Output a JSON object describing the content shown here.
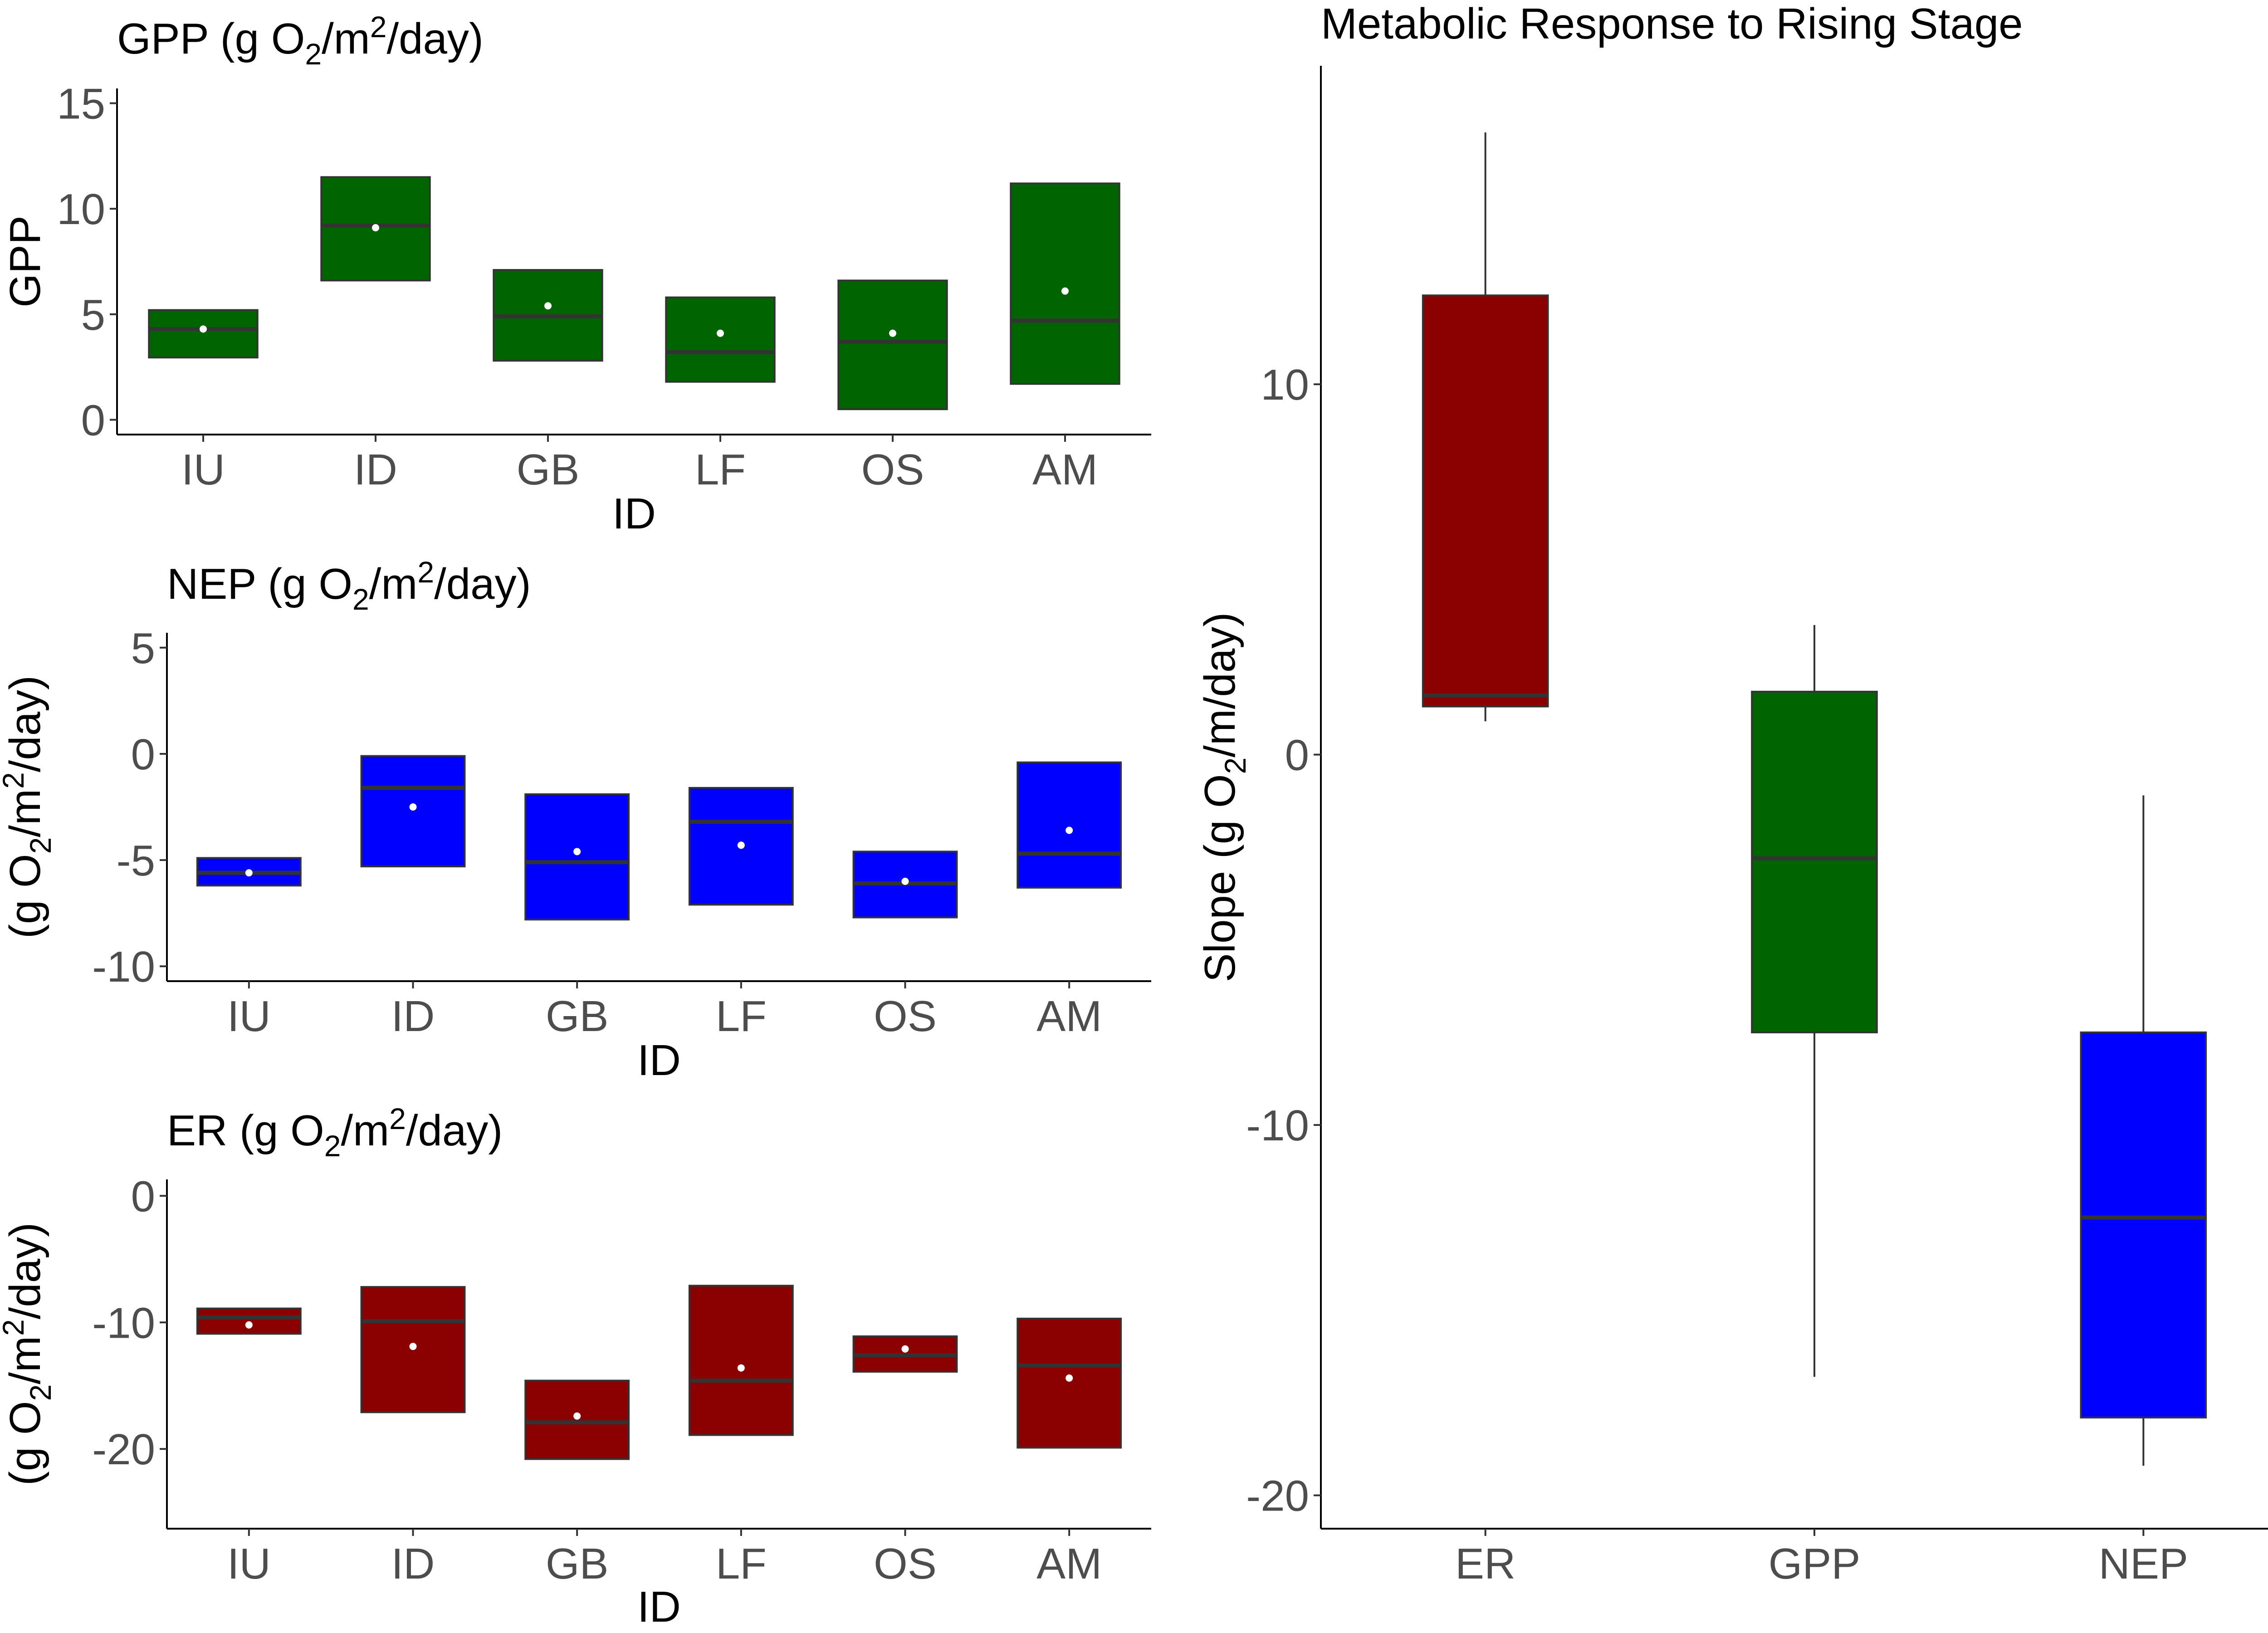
{
  "chart_data": [
    {
      "type": "box",
      "title": {
        "prefix": "GPP (g O",
        "sub": "2",
        "mid": "/m",
        "sup": "2",
        "suffix": "/day)"
      },
      "xlabel": "ID",
      "ylabel": {
        "prefix": "GPP"
      },
      "ylim": [
        -0.7,
        15.7
      ],
      "y_ticks": [
        0,
        5,
        10,
        15
      ],
      "y_tick_labels": [
        "0",
        "5",
        "10",
        "15"
      ],
      "fill_color": "#006400",
      "categories": [
        "IU",
        "ID",
        "GB",
        "LF",
        "OS",
        "AM"
      ],
      "boxes": [
        {
          "q1": 2.95,
          "median": 4.3,
          "q3": 5.2,
          "mean": 4.3
        },
        {
          "q1": 6.6,
          "median": 9.2,
          "q3": 11.5,
          "mean": 9.1
        },
        {
          "q1": 2.8,
          "median": 4.9,
          "q3": 7.1,
          "mean": 5.4
        },
        {
          "q1": 1.8,
          "median": 3.2,
          "q3": 5.8,
          "mean": 4.1
        },
        {
          "q1": 0.5,
          "median": 3.7,
          "q3": 6.6,
          "mean": 4.1
        },
        {
          "q1": 1.7,
          "median": 4.7,
          "q3": 11.2,
          "mean": 6.1
        }
      ]
    },
    {
      "type": "box",
      "title": {
        "prefix": "NEP (g O",
        "sub": "2",
        "mid": "/m",
        "sup": "2",
        "suffix": "/day)"
      },
      "xlabel": "ID",
      "ylabel": {
        "prefix": "(g O",
        "sub": "2",
        "mid": "/m",
        "sup": "2",
        "suffix": "/day)"
      },
      "ylim": [
        -10.7,
        5.7
      ],
      "y_ticks": [
        -10,
        -5,
        0,
        5
      ],
      "y_tick_labels": [
        "-10",
        "-5",
        "0",
        "5"
      ],
      "fill_color": "#0000FF",
      "categories": [
        "IU",
        "ID",
        "GB",
        "LF",
        "OS",
        "AM"
      ],
      "boxes": [
        {
          "q1": -6.2,
          "median": -5.6,
          "q3": -4.9,
          "mean": -5.6
        },
        {
          "q1": -5.3,
          "median": -1.6,
          "q3": -0.1,
          "mean": -2.5
        },
        {
          "q1": -7.8,
          "median": -5.1,
          "q3": -1.9,
          "mean": -4.6
        },
        {
          "q1": -7.1,
          "median": -3.2,
          "q3": -1.6,
          "mean": -4.3
        },
        {
          "q1": -7.7,
          "median": -6.1,
          "q3": -4.6,
          "mean": -6.0
        },
        {
          "q1": -6.3,
          "median": -4.7,
          "q3": -0.4,
          "mean": -3.6
        }
      ]
    },
    {
      "type": "box",
      "title": {
        "prefix": "ER (g O",
        "sub": "2",
        "mid": "/m",
        "sup": "2",
        "suffix": "/day)"
      },
      "xlabel": "ID",
      "ylabel": {
        "prefix": "(g O",
        "sub": "2",
        "mid": "/m",
        "sup": "2",
        "suffix": "/day)"
      },
      "ylim": [
        -26.3,
        1.3
      ],
      "y_ticks": [
        -20,
        -10,
        0
      ],
      "y_tick_labels": [
        "-20",
        "-10",
        "0"
      ],
      "fill_color": "#8B0000",
      "categories": [
        "IU",
        "ID",
        "GB",
        "LF",
        "OS",
        "AM"
      ],
      "boxes": [
        {
          "q1": -10.9,
          "median": -9.6,
          "q3": -8.9,
          "mean": -10.2
        },
        {
          "q1": -17.1,
          "median": -9.9,
          "q3": -7.2,
          "mean": -11.9
        },
        {
          "q1": -20.8,
          "median": -17.9,
          "q3": -14.6,
          "mean": -17.4
        },
        {
          "q1": -18.9,
          "median": -14.6,
          "q3": -7.1,
          "mean": -13.6
        },
        {
          "q1": -13.9,
          "median": -12.6,
          "q3": -11.1,
          "mean": -12.1
        },
        {
          "q1": -19.9,
          "median": -13.4,
          "q3": -9.7,
          "mean": -14.4
        }
      ]
    },
    {
      "type": "box",
      "title": {
        "prefix": "Metabolic Response to Rising Stage"
      },
      "xlabel": "",
      "ylabel": {
        "prefix": "Slope (g O",
        "sub": "2",
        "mid": "/m/day)"
      },
      "ylim": [
        -20.9,
        18.6
      ],
      "y_ticks": [
        -20,
        -10,
        0,
        10
      ],
      "y_tick_labels": [
        "-20",
        "-10",
        "0",
        "10"
      ],
      "categories": [
        "ER",
        "GPP",
        "NEP"
      ],
      "boxes": [
        {
          "min": 0.9,
          "q1": 1.3,
          "median": 1.6,
          "q3": 12.4,
          "max": 16.8,
          "fill_color": "#8B0000"
        },
        {
          "min": -16.8,
          "q1": -7.5,
          "median": -2.8,
          "q3": 1.7,
          "max": 3.5,
          "fill_color": "#006400"
        },
        {
          "min": -19.2,
          "q1": -17.9,
          "median": -12.5,
          "q3": -7.5,
          "max": -1.1,
          "fill_color": "#0000FF"
        }
      ]
    }
  ]
}
